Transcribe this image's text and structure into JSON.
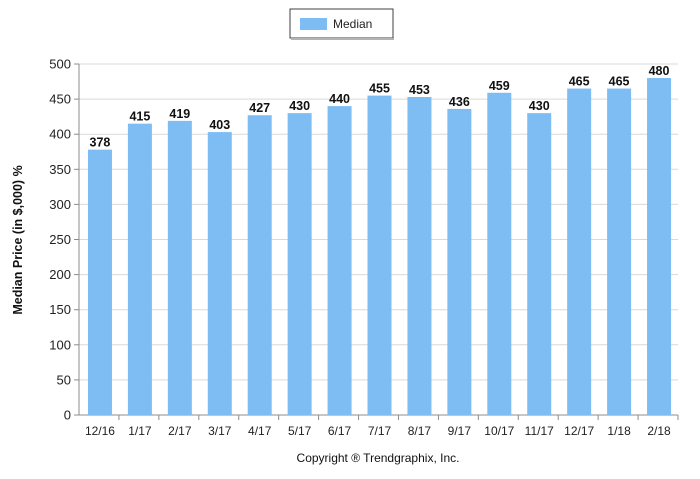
{
  "chart_data": {
    "type": "bar",
    "categories": [
      "12/16",
      "1/17",
      "2/17",
      "3/17",
      "4/17",
      "5/17",
      "6/17",
      "7/17",
      "8/17",
      "9/17",
      "10/17",
      "11/17",
      "12/17",
      "1/18",
      "2/18"
    ],
    "series": [
      {
        "name": "Median",
        "values": [
          378,
          415,
          419,
          403,
          427,
          430,
          440,
          455,
          453,
          436,
          459,
          430,
          465,
          465,
          480
        ]
      }
    ],
    "xlabel": "",
    "ylabel": "Median Price (in $,000) %",
    "ylim": [
      0,
      500
    ],
    "yticks": [
      0,
      50,
      100,
      150,
      200,
      250,
      300,
      350,
      400,
      450,
      500
    ],
    "grid": true,
    "legend": "top-center",
    "data_labels": true,
    "colors": {
      "bar": "#7dbdf4",
      "grid": "#d9d9d9",
      "axis": "#8c8c8c",
      "text": "#222222"
    }
  },
  "footer": {
    "copyright": "Copyright ® Trendgraphix, Inc."
  }
}
